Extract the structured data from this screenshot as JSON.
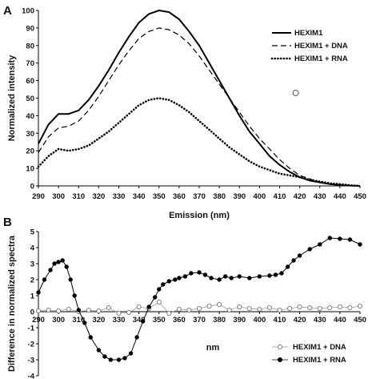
{
  "chart_data": [
    {
      "panel": "A",
      "type": "line",
      "xlabel": "Emission (nm)",
      "ylabel": "Normalized intensity",
      "xlim": [
        290,
        450
      ],
      "ylim": [
        0,
        100
      ],
      "xticks": [
        290,
        300,
        310,
        320,
        330,
        340,
        350,
        360,
        370,
        380,
        390,
        400,
        410,
        420,
        430,
        440,
        450
      ],
      "yticks": [
        0,
        10,
        20,
        30,
        40,
        50,
        60,
        70,
        80,
        90,
        100
      ],
      "legend_position": "top-right",
      "series": [
        {
          "name": "HEXIM1",
          "style": "solid",
          "x": [
            290,
            295,
            300,
            305,
            310,
            315,
            320,
            325,
            330,
            335,
            340,
            345,
            350,
            355,
            360,
            365,
            370,
            375,
            380,
            385,
            390,
            395,
            400,
            405,
            410,
            415,
            420,
            425,
            430,
            435,
            440,
            445,
            450
          ],
          "y": [
            24,
            35,
            41,
            41,
            43,
            49,
            57,
            66,
            76,
            85,
            93,
            98,
            100,
            99,
            95,
            88,
            80,
            70,
            60,
            50,
            40,
            31,
            24,
            17,
            12,
            8,
            5,
            3,
            2,
            1,
            0.5,
            0.2,
            0
          ]
        },
        {
          "name": "HEXIM1 + DNA",
          "style": "dashed",
          "x": [
            290,
            295,
            300,
            305,
            310,
            315,
            320,
            325,
            330,
            335,
            340,
            345,
            350,
            355,
            360,
            365,
            370,
            375,
            380,
            385,
            390,
            395,
            400,
            405,
            410,
            415,
            420,
            425,
            430,
            435,
            440,
            445,
            450
          ],
          "y": [
            19,
            28,
            33,
            34,
            37,
            43,
            51,
            60,
            69,
            77,
            84,
            88,
            90,
            89,
            86,
            81,
            74,
            66,
            58,
            50,
            42,
            34,
            27,
            21,
            15,
            10,
            6,
            4,
            2,
            1,
            0.5,
            0.2,
            0
          ]
        },
        {
          "name": "HEXIM1 + RNA",
          "style": "dotted",
          "x": [
            290,
            295,
            300,
            305,
            310,
            315,
            320,
            325,
            330,
            335,
            340,
            345,
            350,
            355,
            360,
            365,
            370,
            375,
            380,
            385,
            390,
            395,
            400,
            405,
            410,
            415,
            420,
            425,
            430,
            435,
            440,
            445,
            450
          ],
          "y": [
            11,
            17,
            21,
            20,
            21,
            23,
            27,
            31,
            36,
            41,
            46,
            49,
            50,
            49,
            46,
            42,
            37,
            32,
            27,
            22,
            18,
            14,
            11,
            9,
            7,
            6,
            5,
            3.5,
            2.5,
            1.5,
            1,
            0.4,
            0
          ]
        }
      ],
      "annotation_marker": {
        "x": 418,
        "y": 53
      }
    },
    {
      "panel": "B",
      "type": "scatter",
      "xlabel": "nm",
      "ylabel": "Difference in normalized spectra",
      "xlim": [
        290,
        450
      ],
      "ylim": [
        -4,
        5
      ],
      "xticks": [
        290,
        300,
        310,
        320,
        330,
        340,
        350,
        360,
        370,
        380,
        390,
        400,
        410,
        420,
        430,
        440,
        450
      ],
      "yticks": [
        -4,
        -3,
        -2,
        -1,
        0,
        1,
        2,
        3,
        4,
        5
      ],
      "legend_position": "bottom-right",
      "series": [
        {
          "name": "HEXIM1 + DNA",
          "marker": "open-circle",
          "connected": true,
          "x": [
            290,
            295,
            300,
            305,
            310,
            315,
            320,
            325,
            330,
            335,
            340,
            345,
            350,
            355,
            360,
            365,
            370,
            375,
            380,
            385,
            390,
            395,
            400,
            405,
            410,
            415,
            420,
            425,
            430,
            435,
            440,
            445,
            450
          ],
          "y": [
            0.05,
            0.1,
            0.05,
            0.15,
            0,
            0.1,
            0.05,
            0.25,
            -0.1,
            -0.05,
            0.3,
            0.2,
            0.6,
            -0.1,
            0.15,
            0.1,
            0.2,
            0.35,
            0.45,
            0.1,
            0.3,
            0.2,
            0.15,
            0.25,
            0.1,
            0.2,
            0.3,
            0.25,
            0.2,
            0.25,
            0.3,
            0.25,
            0.35
          ]
        },
        {
          "name": "HEXIM1 + RNA",
          "marker": "filled-circle",
          "connected": true,
          "x": [
            290,
            293,
            296,
            298,
            300,
            302,
            304,
            306,
            308,
            310,
            313,
            316,
            320,
            323,
            326,
            330,
            333,
            336,
            339,
            342,
            345,
            348,
            350,
            352,
            355,
            358,
            360,
            363,
            366,
            370,
            373,
            376,
            380,
            383,
            386,
            390,
            395,
            400,
            405,
            408,
            411,
            414,
            417,
            420,
            425,
            430,
            435,
            440,
            445,
            450
          ],
          "y": [
            1.2,
            2.0,
            2.6,
            3.0,
            3.1,
            3.2,
            2.8,
            2.0,
            1.0,
            0.1,
            -0.7,
            -1.6,
            -2.4,
            -2.8,
            -3.0,
            -3.0,
            -2.9,
            -2.6,
            -1.6,
            -0.6,
            0.3,
            0.9,
            1.4,
            1.7,
            1.9,
            2.0,
            2.1,
            2.2,
            2.4,
            2.45,
            2.3,
            2.1,
            2.0,
            2.2,
            2.1,
            2.2,
            2.1,
            2.2,
            2.25,
            2.3,
            2.4,
            2.8,
            3.2,
            3.5,
            3.9,
            4.2,
            4.6,
            4.55,
            4.5,
            4.2
          ]
        }
      ]
    }
  ]
}
